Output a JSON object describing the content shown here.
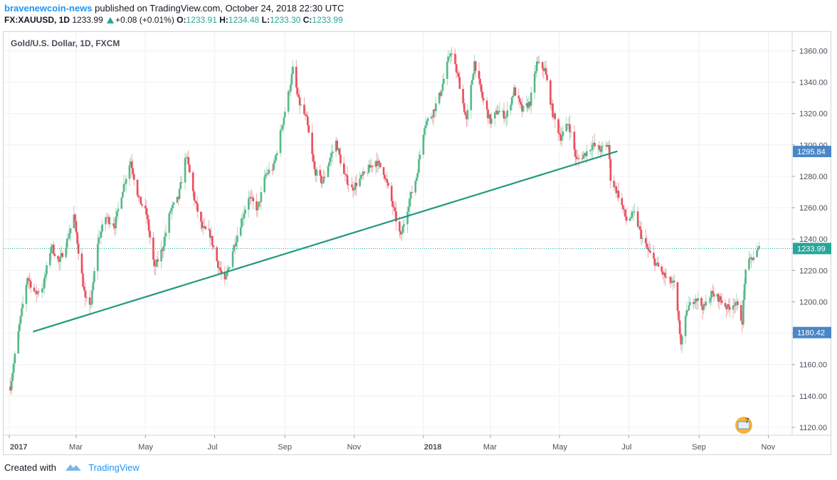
{
  "header": {
    "author": "bravenewcoin-news",
    "published": "published on TradingView.com, October 24, 2018 22:30 UTC",
    "symbol": "FX:XAUUSD, 1D",
    "last": "1233.99",
    "change": "+0.08 (+0.01%)",
    "o_label": "O:",
    "o_value": "1233.91",
    "h_label": "H:",
    "h_value": "1234.48",
    "l_label": "L:",
    "l_value": "1233.30",
    "c_label": "C:",
    "c_value": "1233.99"
  },
  "footer": {
    "created_with": "Created with",
    "brand": "TradingView"
  },
  "colors": {
    "up": "#53b987",
    "down": "#eb4d5c",
    "trendline": "#1f9a7e",
    "price_label": "#26a69a",
    "level_label": "#4a86c8",
    "grid": "#eef0f3"
  },
  "chart_data": {
    "type": "candlestick",
    "title": "Gold/U.S. Dollar, 1D, FXCM",
    "ylim": [
      1115,
      1372
    ],
    "y_ticks": [
      "1120.00",
      "1140.00",
      "1160.00",
      "1180.00",
      "1200.00",
      "1220.00",
      "1240.00",
      "1260.00",
      "1280.00",
      "1300.00",
      "1320.00",
      "1340.00",
      "1360.00"
    ],
    "x_ticks": [
      {
        "label": "2017",
        "date": "2017-01-01"
      },
      {
        "label": "Mar",
        "date": "2017-03-01"
      },
      {
        "label": "May",
        "date": "2017-05-01"
      },
      {
        "label": "Jul",
        "date": "2017-07-01"
      },
      {
        "label": "Sep",
        "date": "2017-09-01"
      },
      {
        "label": "Nov",
        "date": "2017-11-01"
      },
      {
        "label": "2018",
        "date": "2018-01-01"
      },
      {
        "label": "Mar",
        "date": "2018-03-01"
      },
      {
        "label": "May",
        "date": "2018-05-01"
      },
      {
        "label": "Jul",
        "date": "2018-07-01"
      },
      {
        "label": "Sep",
        "date": "2018-09-01"
      },
      {
        "label": "Nov",
        "date": "2018-11-01"
      }
    ],
    "close_path": [
      [
        "2017-01-02",
        1146
      ],
      [
        "2017-01-10",
        1185
      ],
      [
        "2017-01-17",
        1216
      ],
      [
        "2017-01-24",
        1205
      ],
      [
        "2017-01-31",
        1210
      ],
      [
        "2017-02-07",
        1236
      ],
      [
        "2017-02-14",
        1225
      ],
      [
        "2017-02-21",
        1239
      ],
      [
        "2017-02-27",
        1255
      ],
      [
        "2017-03-03",
        1233
      ],
      [
        "2017-03-09",
        1201
      ],
      [
        "2017-03-14",
        1199
      ],
      [
        "2017-03-20",
        1238
      ],
      [
        "2017-03-27",
        1254
      ],
      [
        "2017-04-04",
        1249
      ],
      [
        "2017-04-11",
        1272
      ],
      [
        "2017-04-18",
        1290
      ],
      [
        "2017-04-25",
        1266
      ],
      [
        "2017-05-02",
        1256
      ],
      [
        "2017-05-09",
        1221
      ],
      [
        "2017-05-16",
        1234
      ],
      [
        "2017-05-23",
        1258
      ],
      [
        "2017-05-30",
        1266
      ],
      [
        "2017-06-06",
        1294
      ],
      [
        "2017-06-13",
        1266
      ],
      [
        "2017-06-20",
        1247
      ],
      [
        "2017-06-27",
        1243
      ],
      [
        "2017-07-03",
        1226
      ],
      [
        "2017-07-10",
        1212
      ],
      [
        "2017-07-17",
        1233
      ],
      [
        "2017-07-24",
        1250
      ],
      [
        "2017-07-31",
        1267
      ],
      [
        "2017-08-08",
        1259
      ],
      [
        "2017-08-15",
        1281
      ],
      [
        "2017-08-22",
        1286
      ],
      [
        "2017-08-29",
        1311
      ],
      [
        "2017-09-05",
        1336
      ],
      [
        "2017-09-08",
        1348
      ],
      [
        "2017-09-13",
        1328
      ],
      [
        "2017-09-20",
        1316
      ],
      [
        "2017-09-27",
        1284
      ],
      [
        "2017-10-04",
        1276
      ],
      [
        "2017-10-11",
        1292
      ],
      [
        "2017-10-16",
        1302
      ],
      [
        "2017-10-23",
        1281
      ],
      [
        "2017-10-30",
        1272
      ],
      [
        "2017-11-06",
        1278
      ],
      [
        "2017-11-13",
        1284
      ],
      [
        "2017-11-20",
        1290
      ],
      [
        "2017-11-27",
        1283
      ],
      [
        "2017-12-04",
        1264
      ],
      [
        "2017-12-12",
        1241
      ],
      [
        "2017-12-19",
        1263
      ],
      [
        "2017-12-26",
        1280
      ],
      [
        "2018-01-02",
        1313
      ],
      [
        "2018-01-09",
        1320
      ],
      [
        "2018-01-16",
        1333
      ],
      [
        "2018-01-25",
        1360
      ],
      [
        "2018-02-01",
        1342
      ],
      [
        "2018-02-08",
        1315
      ],
      [
        "2018-02-15",
        1353
      ],
      [
        "2018-02-22",
        1330
      ],
      [
        "2018-03-01",
        1315
      ],
      [
        "2018-03-08",
        1322
      ],
      [
        "2018-03-15",
        1318
      ],
      [
        "2018-03-22",
        1335
      ],
      [
        "2018-03-29",
        1322
      ],
      [
        "2018-04-05",
        1327
      ],
      [
        "2018-04-11",
        1352
      ],
      [
        "2018-04-18",
        1348
      ],
      [
        "2018-04-25",
        1320
      ],
      [
        "2018-05-02",
        1305
      ],
      [
        "2018-05-09",
        1314
      ],
      [
        "2018-05-16",
        1290
      ],
      [
        "2018-05-23",
        1294
      ],
      [
        "2018-05-30",
        1300
      ],
      [
        "2018-06-06",
        1297
      ],
      [
        "2018-06-13",
        1300
      ],
      [
        "2018-06-15",
        1279
      ],
      [
        "2018-06-22",
        1268
      ],
      [
        "2018-06-29",
        1252
      ],
      [
        "2018-07-06",
        1256
      ],
      [
        "2018-07-13",
        1240
      ],
      [
        "2018-07-20",
        1230
      ],
      [
        "2018-07-27",
        1222
      ],
      [
        "2018-08-03",
        1215
      ],
      [
        "2018-08-10",
        1211
      ],
      [
        "2018-08-16",
        1174
      ],
      [
        "2018-08-22",
        1196
      ],
      [
        "2018-08-29",
        1203
      ],
      [
        "2018-09-05",
        1196
      ],
      [
        "2018-09-12",
        1205
      ],
      [
        "2018-09-19",
        1202
      ],
      [
        "2018-09-26",
        1196
      ],
      [
        "2018-10-03",
        1200
      ],
      [
        "2018-10-09",
        1188
      ],
      [
        "2018-10-12",
        1222
      ],
      [
        "2018-10-17",
        1227
      ],
      [
        "2018-10-24",
        1234
      ]
    ],
    "trendline": [
      [
        "2017-01-22",
        1181
      ],
      [
        "2018-06-21",
        1296
      ]
    ],
    "last_price": 1233.99,
    "price_labels": [
      "1295.84",
      "1233.99",
      "1180.42"
    ],
    "event_badge": "7"
  }
}
